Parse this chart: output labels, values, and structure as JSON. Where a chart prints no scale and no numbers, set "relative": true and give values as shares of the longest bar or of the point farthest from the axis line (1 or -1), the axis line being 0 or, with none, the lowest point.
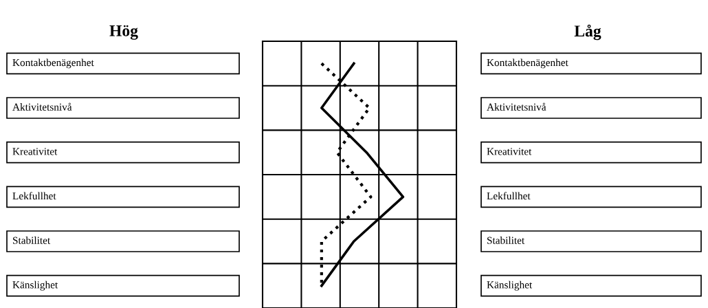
{
  "chart_data": {
    "type": "line",
    "orientation": "horizontal",
    "relative": true,
    "tick_labels": false,
    "grid": true,
    "marker": "none",
    "annotations": [
      "Hög",
      "Låg"
    ],
    "categories": [
      "Kontaktbenägenhet",
      "Aktivitetsnivå",
      "Kreativitet",
      "Lekfullhet",
      "Stabilitet",
      "Känslighet"
    ],
    "series": [
      {
        "color": "#000000",
        "line_style": "solid",
        "values": [
          0.65,
          0.42,
          0.74,
          1,
          0.65,
          0.42
        ]
      },
      {
        "color": "#000000",
        "line_style": "dotted",
        "values": [
          0.42,
          0.76,
          0.53,
          0.77,
          0.42,
          0.42
        ]
      }
    ]
  }
}
